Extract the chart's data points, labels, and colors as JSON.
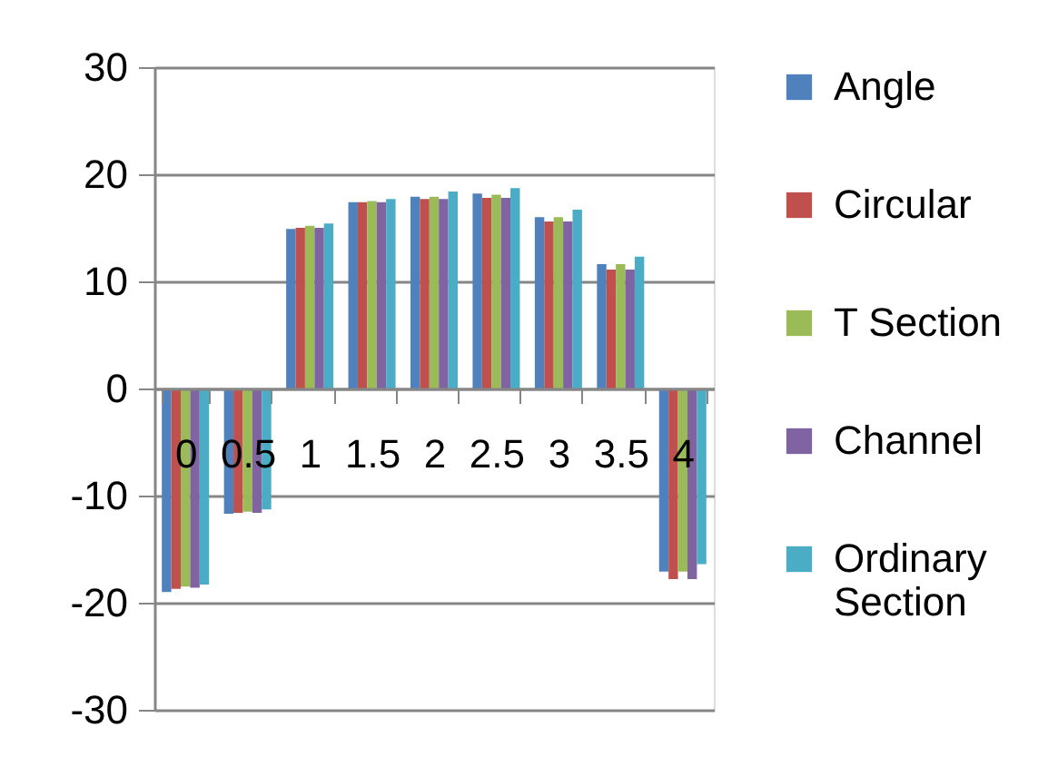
{
  "chart_data": {
    "type": "bar",
    "categories": [
      "0",
      "0.5",
      "1",
      "1.5",
      "2",
      "2.5",
      "3",
      "3.5",
      "4"
    ],
    "series": [
      {
        "name": "Angle",
        "color": "#4f81bd",
        "values": [
          -19.0,
          -11.7,
          14.9,
          17.4,
          17.9,
          18.2,
          16.0,
          11.6,
          -17.1
        ]
      },
      {
        "name": "Circular",
        "color": "#c0504d",
        "values": [
          -18.7,
          -11.6,
          15.0,
          17.4,
          17.7,
          17.8,
          15.6,
          11.1,
          -17.8
        ]
      },
      {
        "name": "T Section",
        "color": "#9bbb59",
        "values": [
          -18.5,
          -11.5,
          15.2,
          17.5,
          17.9,
          18.1,
          16.0,
          11.6,
          -17.1
        ]
      },
      {
        "name": "Channel",
        "color": "#8064a2",
        "values": [
          -18.6,
          -11.6,
          15.0,
          17.4,
          17.7,
          17.8,
          15.6,
          11.1,
          -17.8
        ]
      },
      {
        "name": "Ordinary Section",
        "color": "#4bacc6",
        "values": [
          -18.3,
          -11.3,
          15.4,
          17.7,
          18.4,
          18.7,
          16.7,
          12.3,
          -16.4
        ]
      }
    ],
    "ylim": [
      -30,
      30
    ],
    "yticks": [
      -30,
      -20,
      -10,
      0,
      10,
      20,
      30
    ],
    "grid": "y",
    "legend": "right"
  }
}
